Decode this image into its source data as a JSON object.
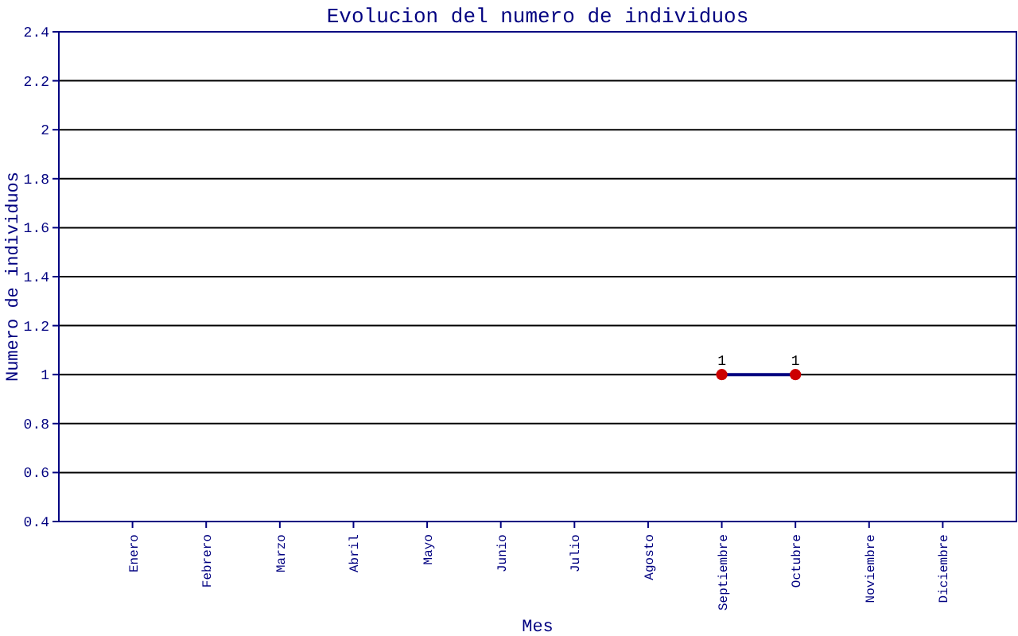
{
  "chart_data": {
    "type": "line",
    "title": "Evolucion del numero de individuos",
    "xlabel": "Mes",
    "ylabel": "Numero de individuos",
    "categories": [
      "Enero",
      "Febrero",
      "Marzo",
      "Abril",
      "Mayo",
      "Junio",
      "Julio",
      "Agosto",
      "Septiembre",
      "Octubre",
      "Noviembre",
      "Diciembre"
    ],
    "series": [
      {
        "color": "#cc0000",
        "values": [
          null,
          null,
          null,
          null,
          null,
          null,
          null,
          null,
          1,
          1,
          null,
          null
        ]
      }
    ],
    "ylim": [
      0.4,
      2.4
    ],
    "yticks": [
      0.4,
      0.6,
      0.8,
      1,
      1.2,
      1.4,
      1.6,
      1.8,
      2,
      2.2,
      2.4
    ],
    "grid": "y",
    "marker": "circle",
    "data_labels": true
  }
}
